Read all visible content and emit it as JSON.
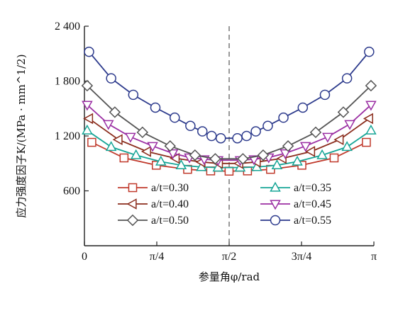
{
  "chart_data": {
    "type": "line",
    "xlabel": "参量角φ/rad",
    "ylabel": "应力强度因子K/(MPa · mm^1/2)",
    "xlim": [
      0,
      3.14159
    ],
    "ylim": [
      0,
      2400
    ],
    "x_ticks": [
      {
        "value": 0,
        "label": "0"
      },
      {
        "value": 0.7854,
        "label": "π/4"
      },
      {
        "value": 1.5708,
        "label": "π/2"
      },
      {
        "value": 2.3562,
        "label": "3π/4"
      },
      {
        "value": 3.14159,
        "label": "π"
      }
    ],
    "y_ticks": [
      {
        "value": 600,
        "label": "600"
      },
      {
        "value": 1200,
        "label": "1 200"
      },
      {
        "value": 1800,
        "label": "1 800"
      },
      {
        "value": 2400,
        "label": "2 400"
      }
    ],
    "vline_x": 1.5708,
    "grid": false,
    "legend_position": "bottom-center, two columns",
    "series": [
      {
        "name": "a/t=0.30",
        "color": "#c0392b",
        "marker": "square",
        "x": [
          0.08,
          0.43,
          0.78,
          1.12,
          1.37,
          1.57,
          1.77,
          2.02,
          2.36,
          2.71,
          3.06
        ],
        "y": [
          1130,
          960,
          880,
          835,
          818,
          815,
          818,
          835,
          880,
          960,
          1130
        ]
      },
      {
        "name": "a/t=0.35",
        "color": "#16a596",
        "marker": "triangle-up",
        "x": [
          0.03,
          0.29,
          0.56,
          0.83,
          1.05,
          1.27,
          1.45,
          1.69,
          1.87,
          2.09,
          2.31,
          2.58,
          2.85,
          3.11
        ],
        "y": [
          1260,
          1080,
          990,
          920,
          880,
          860,
          855,
          855,
          860,
          880,
          920,
          990,
          1080,
          1260
        ]
      },
      {
        "name": "a/t=0.40",
        "color": "#8b2d1d",
        "marker": "triangle-left",
        "x": [
          0.05,
          0.37,
          0.68,
          0.99,
          1.27,
          1.46,
          1.68,
          1.87,
          2.15,
          2.46,
          2.77,
          3.09
        ],
        "y": [
          1390,
          1160,
          1030,
          955,
          915,
          900,
          900,
          915,
          955,
          1030,
          1160,
          1390
        ]
      },
      {
        "name": "a/t=0.45",
        "color": "#9b2fa3",
        "marker": "triangle-down",
        "x": [
          0.03,
          0.26,
          0.5,
          0.74,
          0.96,
          1.14,
          1.3,
          1.45,
          1.69,
          1.84,
          2.0,
          2.18,
          2.4,
          2.64,
          2.88,
          3.11
        ],
        "y": [
          1540,
          1330,
          1190,
          1090,
          1010,
          965,
          945,
          935,
          935,
          945,
          965,
          1010,
          1090,
          1190,
          1330,
          1540
        ]
      },
      {
        "name": "a/t=0.50",
        "color": "#555555",
        "marker": "diamond",
        "x": [
          0.03,
          0.33,
          0.63,
          0.93,
          1.2,
          1.42,
          1.72,
          1.94,
          2.21,
          2.51,
          2.81,
          3.11
        ],
        "y": [
          1750,
          1460,
          1240,
          1090,
          990,
          950,
          950,
          990,
          1090,
          1240,
          1460,
          1750
        ]
      },
      {
        "name": "a/t=0.55",
        "color": "#2c3a8c",
        "marker": "circle",
        "x": [
          0.05,
          0.29,
          0.53,
          0.77,
          0.98,
          1.15,
          1.28,
          1.38,
          1.48,
          1.66,
          1.76,
          1.86,
          1.99,
          2.16,
          2.37,
          2.61,
          2.85,
          3.09
        ],
        "y": [
          2120,
          1830,
          1650,
          1510,
          1400,
          1310,
          1250,
          1200,
          1175,
          1175,
          1200,
          1250,
          1310,
          1400,
          1510,
          1650,
          1830,
          2120
        ]
      }
    ]
  }
}
